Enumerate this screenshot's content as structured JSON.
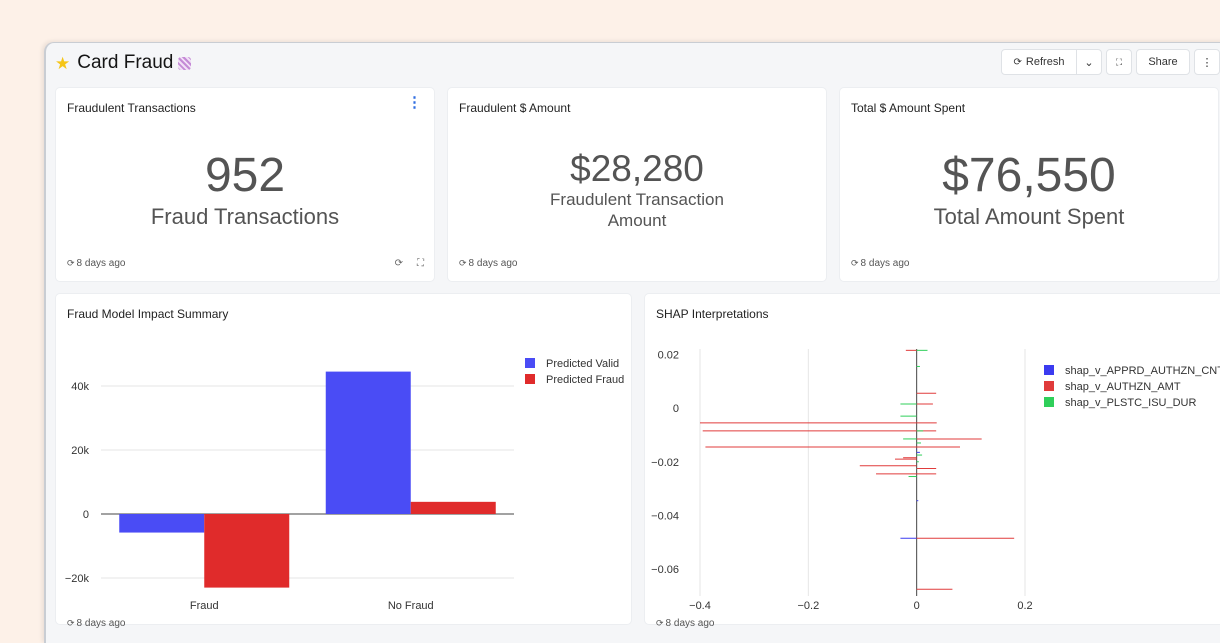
{
  "dashboard": {
    "title": "Card Fraud",
    "star_icon": "star-icon",
    "badge_icon": "certified-badge-icon"
  },
  "toolbar": {
    "refresh_label": "Refresh",
    "share_label": "Share"
  },
  "kpis": [
    {
      "title": "Fraudulent Transactions",
      "value": "952",
      "label": "Fraud Transactions",
      "updated": "8 days ago"
    },
    {
      "title": "Fraudulent $ Amount",
      "value": "$28,280",
      "label_line1": "Fraudulent Transaction",
      "label_line2": "Amount",
      "updated": "8 days ago"
    },
    {
      "title": "Total $ Amount Spent",
      "value": "$76,550",
      "label": "Total Amount Spent",
      "updated": "8 days ago"
    }
  ],
  "impact_card": {
    "title": "Fraud Model Impact Summary",
    "updated": "8 days ago"
  },
  "shap_card": {
    "title": "SHAP Interpretations",
    "updated": "8 days ago"
  },
  "chart_data": [
    {
      "type": "bar",
      "title": "Fraud Model Impact Summary",
      "categories": [
        "Fraud",
        "No Fraud"
      ],
      "series": [
        {
          "name": "Predicted Valid",
          "color": "#4a4cf5",
          "values": [
            -5800,
            44500
          ]
        },
        {
          "name": "Predicted Fraud",
          "color": "#e02b2b",
          "values": [
            -23000,
            3800
          ]
        }
      ],
      "ylim": [
        -25000,
        50000
      ],
      "yticks": [
        -20000,
        0,
        20000,
        40000
      ],
      "ytick_labels": [
        "−20k",
        "0",
        "20k",
        "40k"
      ],
      "legend": "top-right"
    },
    {
      "type": "bar",
      "orientation": "horizontal",
      "title": "SHAP Interpretations",
      "xlim": [
        -0.4,
        0.2
      ],
      "ylim": [
        -0.07,
        0.022
      ],
      "xticks": [
        -0.4,
        -0.2,
        0,
        0.2
      ],
      "xtick_labels": [
        "−0.4",
        "−0.2",
        "0",
        "0.2"
      ],
      "yticks": [
        0.02,
        0,
        -0.02,
        -0.04,
        -0.06
      ],
      "ytick_labels": [
        "0.02",
        "0",
        "−0.02",
        "−0.04",
        "−0.06"
      ],
      "legend": "top-right",
      "series": [
        {
          "name": "shap_v_APPRD_AUTHZN_CNT",
          "color": "#3b3bf0",
          "points": [
            [
              -0.001,
              -0.0155
            ],
            [
              0.006,
              -0.0165
            ],
            [
              0.003,
              -0.0345
            ],
            [
              -0.03,
              -0.0485
            ]
          ]
        },
        {
          "name": "shap_v_AUTHZN_AMT",
          "color": "#e03b3b",
          "points": [
            [
              -0.02,
              0.0215
            ],
            [
              0.0,
              0.0175
            ],
            [
              0.0,
              0.0155
            ],
            [
              0.037,
              -0.0055
            ],
            [
              0.03,
              0.0015
            ],
            [
              0.036,
              0.0055
            ],
            [
              -0.4,
              -0.0055
            ],
            [
              0.036,
              -0.0085
            ],
            [
              -0.395,
              -0.0085
            ],
            [
              0.12,
              -0.0115
            ],
            [
              -0.39,
              -0.0145
            ],
            [
              -0.34,
              -0.0145
            ],
            [
              0.08,
              -0.0145
            ],
            [
              0.036,
              -0.0225
            ],
            [
              0.036,
              -0.0245
            ],
            [
              -0.105,
              -0.0215
            ],
            [
              -0.075,
              -0.0245
            ],
            [
              -0.04,
              -0.019
            ],
            [
              -0.025,
              -0.0185
            ],
            [
              0.18,
              -0.0485
            ],
            [
              0.066,
              -0.0675
            ]
          ]
        },
        {
          "name": "shap_v_PLSTC_ISU_DUR",
          "color": "#2fcf5a",
          "points": [
            [
              0.02,
              0.0215
            ],
            [
              0.006,
              0.0155
            ],
            [
              -0.03,
              0.0015
            ],
            [
              -0.03,
              -0.003
            ],
            [
              0.012,
              -0.0085
            ],
            [
              -0.025,
              -0.0115
            ],
            [
              0.008,
              -0.013
            ],
            [
              0.01,
              -0.0175
            ],
            [
              -0.015,
              -0.0255
            ],
            [
              0.004,
              -0.02
            ]
          ]
        }
      ]
    }
  ]
}
